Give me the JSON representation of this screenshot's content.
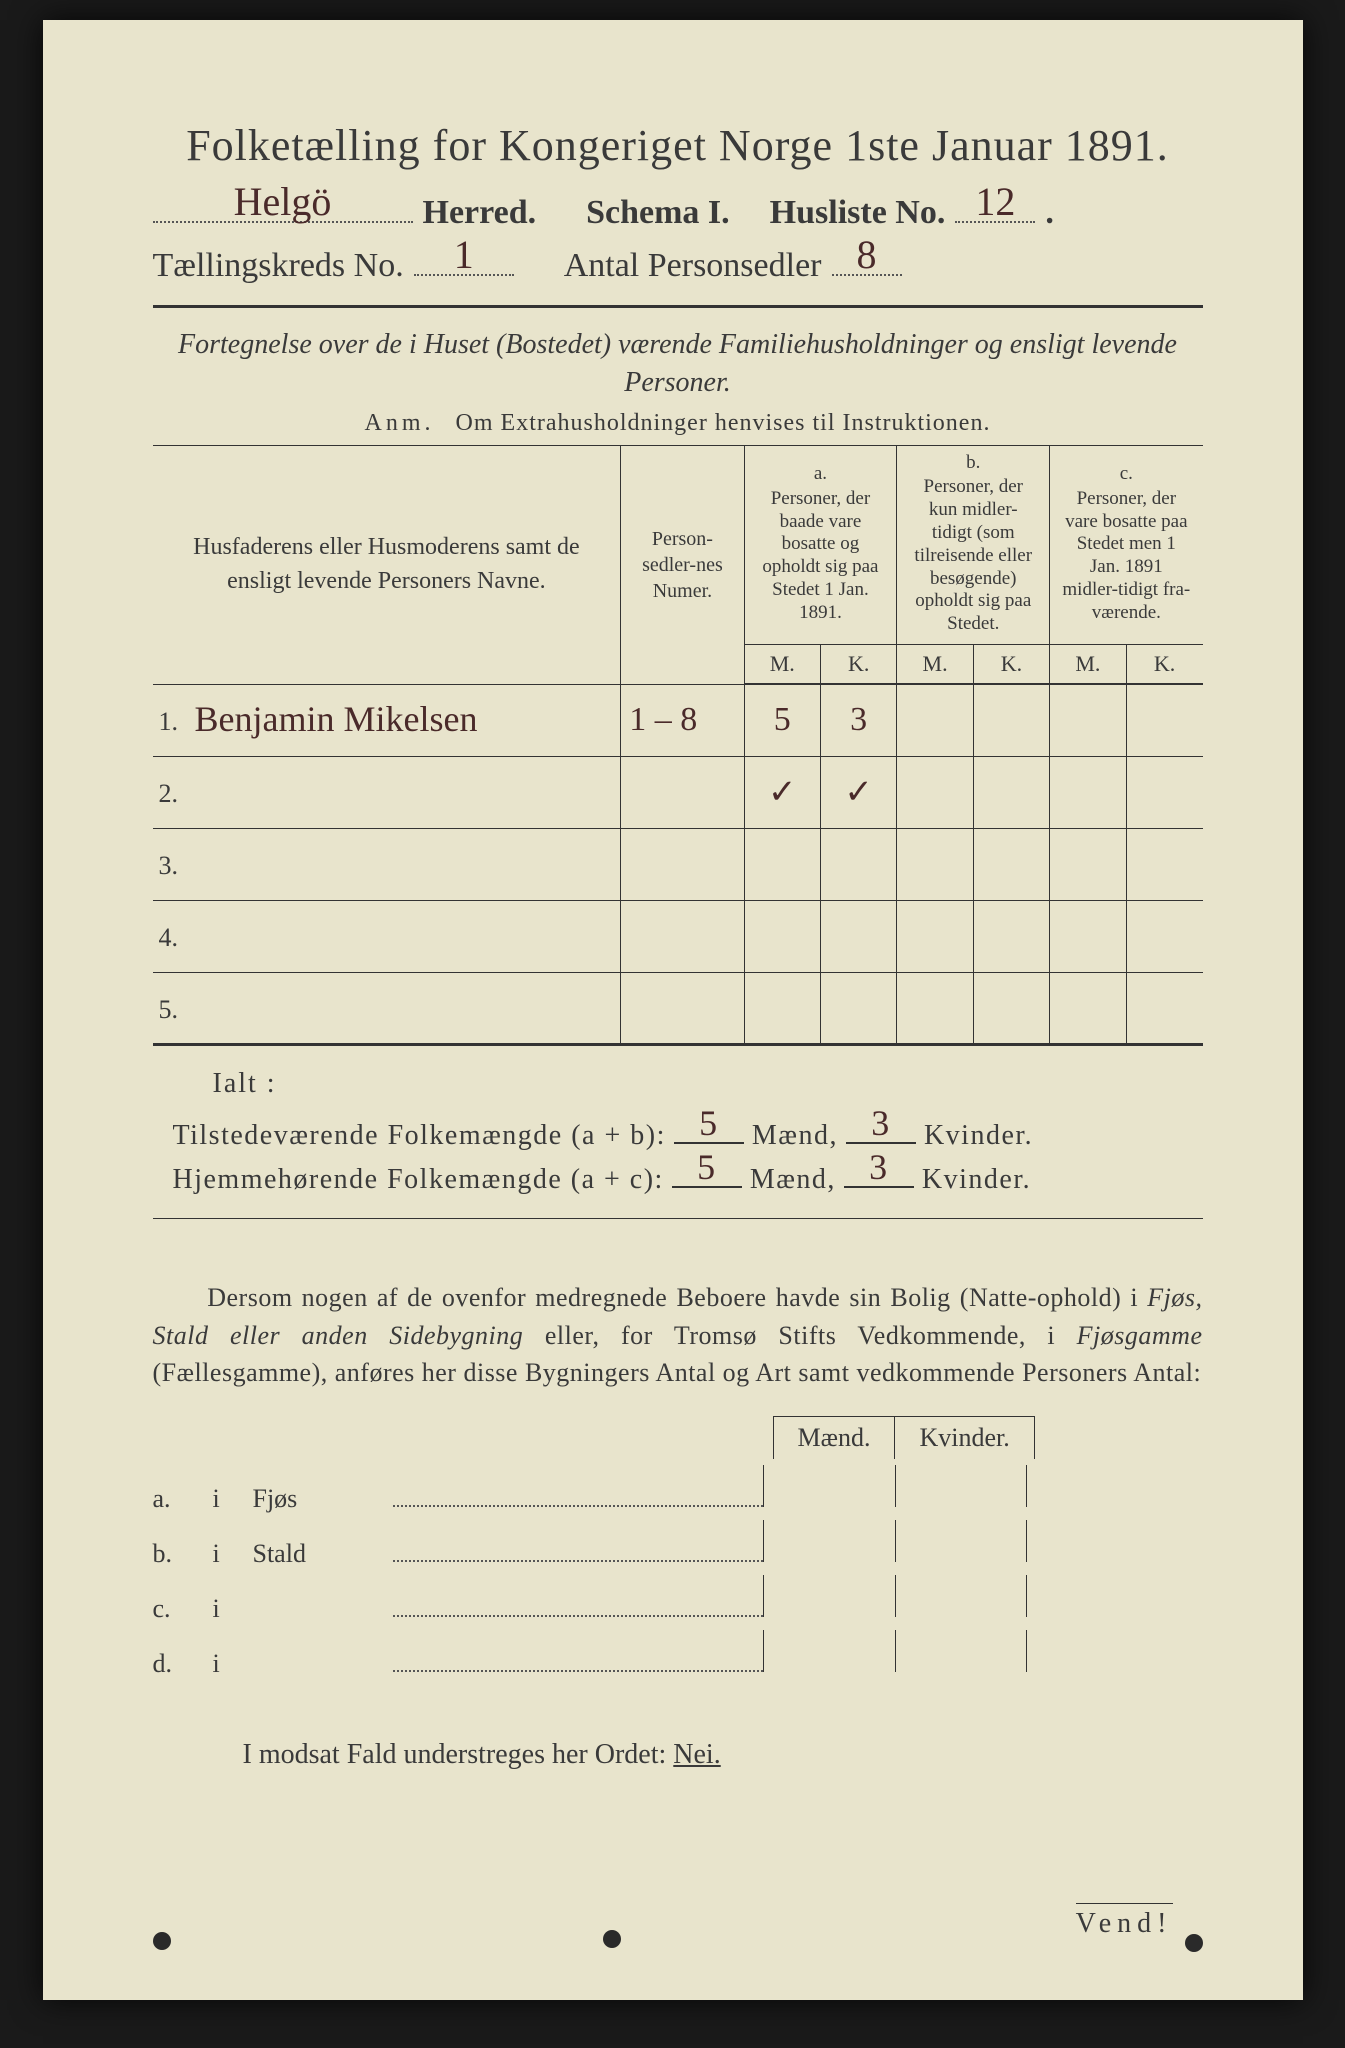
{
  "title": "Folketælling for Kongeriget Norge 1ste Januar 1891.",
  "header": {
    "herred_value": "Helgö",
    "herred_label": "Herred.",
    "schema_label": "Schema I.",
    "husliste_label": "Husliste No.",
    "husliste_value": "12",
    "kreds_label": "Tællingskreds No.",
    "kreds_value": "1",
    "antal_label": "Antal Personsedler",
    "antal_value": "8"
  },
  "subtitle": "Fortegnelse over de i Huset (Bostedet) værende Familiehusholdninger og ensligt levende Personer.",
  "anm_prefix": "Anm.",
  "anm_text": "Om Extrahusholdninger henvises til Instruktionen.",
  "table": {
    "col_names": "Husfaderens eller Husmoderens samt de ensligt levende Personers Navne.",
    "col_num": "Person-sedler-nes Numer.",
    "col_a_head": "a.",
    "col_a": "Personer, der baade vare bosatte og opholdt sig paa Stedet 1 Jan. 1891.",
    "col_b_head": "b.",
    "col_b": "Personer, der kun midler-tidigt (som tilreisende eller besøgende) opholdt sig paa Stedet.",
    "col_c_head": "c.",
    "col_c": "Personer, der vare bosatte paa Stedet men 1 Jan. 1891 midler-tidigt fra-værende.",
    "m": "M.",
    "k": "K.",
    "rows": [
      {
        "n": "1.",
        "name": "Benjamin Mikelsen",
        "num": "1 – 8",
        "a_m": "5",
        "a_k": "3",
        "b_m": "",
        "b_k": "",
        "c_m": "",
        "c_k": ""
      },
      {
        "n": "2.",
        "name": "",
        "num": "",
        "a_m": "✓",
        "a_k": "✓",
        "b_m": "",
        "b_k": "",
        "c_m": "",
        "c_k": ""
      },
      {
        "n": "3.",
        "name": "",
        "num": "",
        "a_m": "",
        "a_k": "",
        "b_m": "",
        "b_k": "",
        "c_m": "",
        "c_k": ""
      },
      {
        "n": "4.",
        "name": "",
        "num": "",
        "a_m": "",
        "a_k": "",
        "b_m": "",
        "b_k": "",
        "c_m": "",
        "c_k": ""
      },
      {
        "n": "5.",
        "name": "",
        "num": "",
        "a_m": "",
        "a_k": "",
        "b_m": "",
        "b_k": "",
        "c_m": "",
        "c_k": ""
      }
    ]
  },
  "ialt": "Ialt :",
  "sums": {
    "line1_label": "Tilstedeværende Folkemængde (a + b):",
    "line2_label": "Hjemmehørende Folkemængde (a + c):",
    "maend": "Mænd,",
    "kvinder": "Kvinder.",
    "l1_m": "5",
    "l1_k": "3",
    "l2_m": "5",
    "l2_k": "3"
  },
  "para": {
    "t1": "Dersom nogen af de ovenfor medregnede Beboere havde sin Bolig (Natte-ophold) i ",
    "it1": "Fjøs, Stald eller anden Sidebygning",
    "t2": " eller, for Tromsø Stifts Vedkommende, i ",
    "it2": "Fjøsgamme",
    "t3": " (Fællesgamme), anføres her disse Bygningers Antal og Art samt vedkommende Personers Antal:"
  },
  "buildings": {
    "head_m": "Mænd.",
    "head_k": "Kvinder.",
    "rows": [
      {
        "l": "a.",
        "i": "i",
        "name": "Fjøs"
      },
      {
        "l": "b.",
        "i": "i",
        "name": "Stald"
      },
      {
        "l": "c.",
        "i": "i",
        "name": ""
      },
      {
        "l": "d.",
        "i": "i",
        "name": ""
      }
    ]
  },
  "footer": "I modsat Fald understreges her Ordet:",
  "nei": "Nei.",
  "vend": "Vend!"
}
